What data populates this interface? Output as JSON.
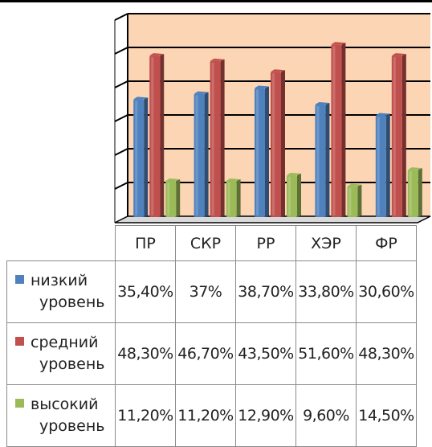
{
  "colors": {
    "plot_background": "#fcd5b4",
    "series": [
      "#4f81bd",
      "#c0504d",
      "#9bbb59"
    ]
  },
  "chart_data": {
    "type": "bar",
    "categories": [
      "ПР",
      "СКР",
      "РР",
      "ХЭР",
      "ФР"
    ],
    "series": [
      {
        "name": "низкий уровень",
        "label_lines": [
          "низкий",
          "уровень"
        ],
        "values": [
          35.4,
          37,
          38.7,
          33.8,
          30.6
        ],
        "labels": [
          "35,40%",
          "37%",
          "38,70%",
          "33,80%",
          "30,60%"
        ],
        "color": "#4f81bd"
      },
      {
        "name": "средний уровень",
        "label_lines": [
          "средний",
          "уровень"
        ],
        "values": [
          48.3,
          46.7,
          43.5,
          51.6,
          48.3
        ],
        "labels": [
          "48,30%",
          "46,70%",
          "43,50%",
          "51,60%",
          "48,30%"
        ],
        "color": "#c0504d"
      },
      {
        "name": "высокий уровень",
        "label_lines": [
          "высокий",
          "уровень"
        ],
        "values": [
          11.2,
          11.2,
          12.9,
          9.6,
          14.5
        ],
        "labels": [
          "11,20%",
          "11,20%",
          "12,90%",
          "9,60%",
          "14,50%"
        ],
        "color": "#9bbb59"
      }
    ],
    "ylim": [
      0,
      60
    ],
    "y_gridlines": [
      10,
      20,
      30,
      40,
      50,
      60
    ],
    "grid": true,
    "title": "",
    "xlabel": "",
    "ylabel": "",
    "legend": "data-table"
  }
}
